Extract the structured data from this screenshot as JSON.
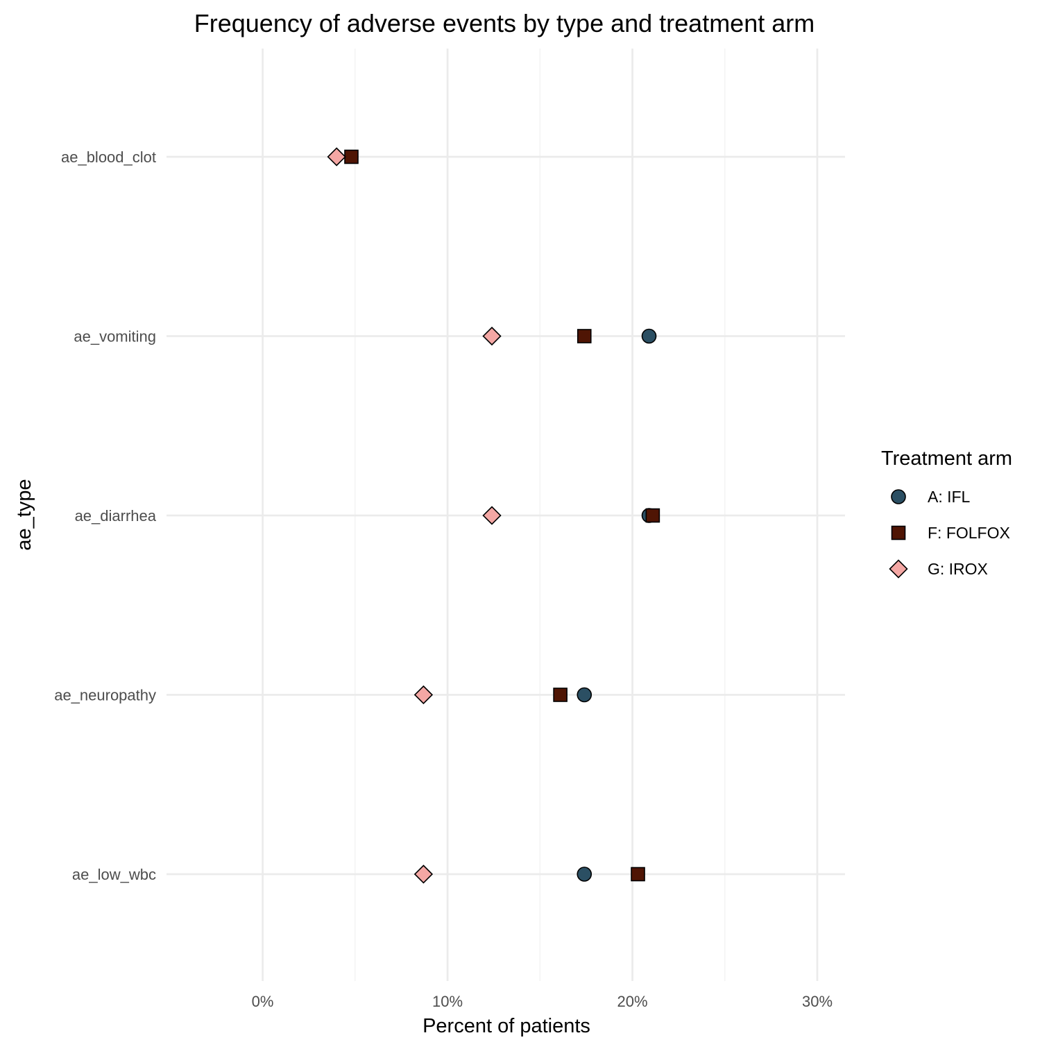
{
  "chart_data": {
    "type": "scatter",
    "title": "Frequency of adverse events by type and treatment arm",
    "xlabel": "Percent of patients",
    "ylabel": "ae_type",
    "xlim": [
      -0.052,
      0.315
    ],
    "x_ticks": [
      0,
      0.1,
      0.2,
      0.3
    ],
    "x_tick_labels": [
      "0%",
      "10%",
      "20%",
      "30%"
    ],
    "categories": [
      "ae_blood_clot",
      "ae_vomiting",
      "ae_diarrhea",
      "ae_neuropathy",
      "ae_low_wbc"
    ],
    "grid": true,
    "legend": {
      "title": "Treatment arm",
      "position": "right"
    },
    "series": [
      {
        "name": "A: IFL",
        "shape": "circle",
        "color": "#2b4f63",
        "values": [
          null,
          0.209,
          0.209,
          0.174,
          0.174
        ]
      },
      {
        "name": "F: FOLFOX",
        "shape": "square",
        "color": "#4f1504",
        "values": [
          0.048,
          0.174,
          0.211,
          0.161,
          0.203
        ]
      },
      {
        "name": "G: IROX",
        "shape": "diamond",
        "color": "#f4a7a4",
        "values": [
          0.04,
          0.124,
          0.124,
          0.087,
          0.087
        ]
      }
    ]
  }
}
